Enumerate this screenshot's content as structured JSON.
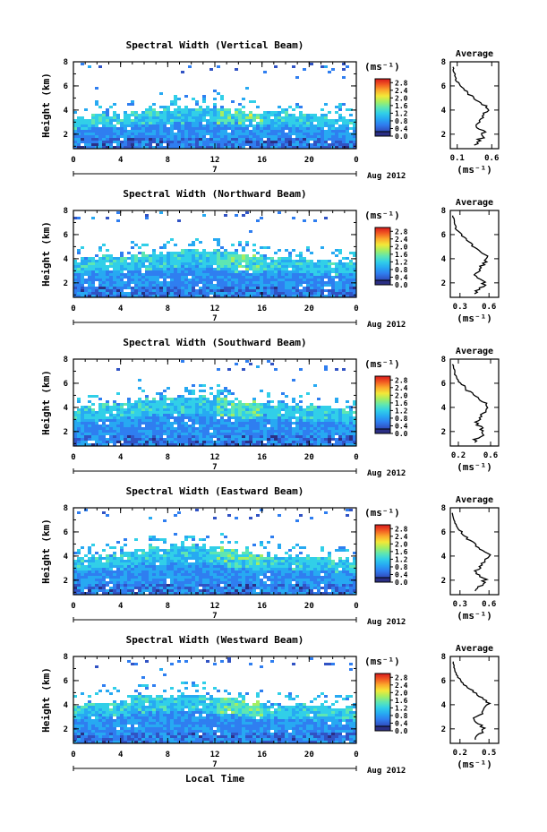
{
  "chart_data": [
    {
      "type": "heatmap",
      "title": "Spectral Width (Vertical Beam)",
      "ylabel": "Height (km)",
      "yticks": [
        "2",
        "4",
        "6",
        "8"
      ],
      "xticks": [
        "0",
        "4",
        "8",
        "12",
        "16",
        "20",
        "0"
      ],
      "date_day": "7",
      "date_label": "Aug 2012",
      "xlim": [
        0,
        24
      ],
      "ylim": [
        0.8,
        8
      ],
      "layer_top_km": [
        3.3,
        3.6,
        3.6,
        3.9,
        4.0,
        4.3,
        4.1,
        4.0,
        3.8,
        3.7,
        3.5,
        3.4,
        3.3
      ],
      "colorbar": {
        "unit": "(ms⁻¹)",
        "ticks": [
          "0.0",
          "0.4",
          "0.8",
          "1.2",
          "1.6",
          "2.0",
          "2.4",
          "2.8"
        ],
        "range": [
          0,
          3.0
        ]
      },
      "profile": {
        "title": "Average",
        "xlabel": "(ms⁻¹)",
        "xticks": [
          "0.1",
          "0.6"
        ],
        "xlim": [
          0.0,
          0.7
        ],
        "yticks": [
          "2",
          "4",
          "6",
          "8"
        ],
        "ylim": [
          0.8,
          8
        ]
      }
    },
    {
      "type": "heatmap",
      "title": "Spectral Width (Northward Beam)",
      "ylabel": "Height (km)",
      "yticks": [
        "2",
        "4",
        "6",
        "8"
      ],
      "xticks": [
        "0",
        "4",
        "8",
        "12",
        "16",
        "20",
        "0"
      ],
      "date_day": "7",
      "date_label": "Aug 2012",
      "xlim": [
        0,
        24
      ],
      "ylim": [
        0.8,
        8
      ],
      "layer_top_km": [
        3.9,
        4.1,
        4.2,
        4.4,
        4.5,
        4.8,
        4.6,
        4.4,
        4.2,
        4.0,
        3.9,
        3.8,
        3.7
      ],
      "colorbar": {
        "unit": "(ms⁻¹)",
        "ticks": [
          "0.0",
          "0.4",
          "0.8",
          "1.2",
          "1.6",
          "2.0",
          "2.4",
          "2.8"
        ],
        "range": [
          0,
          3.0
        ]
      },
      "profile": {
        "title": "Average",
        "xlabel": "(ms⁻¹)",
        "xticks": [
          "0.3",
          "0.6"
        ],
        "xlim": [
          0.2,
          0.7
        ],
        "yticks": [
          "2",
          "4",
          "6",
          "8"
        ],
        "ylim": [
          0.8,
          8
        ]
      }
    },
    {
      "type": "heatmap",
      "title": "Spectral Width (Southward Beam)",
      "ylabel": "Height (km)",
      "yticks": [
        "2",
        "4",
        "6",
        "8"
      ],
      "xticks": [
        "0",
        "4",
        "8",
        "12",
        "16",
        "20",
        "0"
      ],
      "date_day": "7",
      "date_label": "Aug 2012",
      "xlim": [
        0,
        24
      ],
      "ylim": [
        0.8,
        8
      ],
      "layer_top_km": [
        3.9,
        4.1,
        4.3,
        4.7,
        4.8,
        5.0,
        4.7,
        4.5,
        4.3,
        4.1,
        4.0,
        3.9,
        3.8
      ],
      "colorbar": {
        "unit": "(ms⁻¹)",
        "ticks": [
          "0.0",
          "0.4",
          "0.8",
          "1.2",
          "1.6",
          "2.0",
          "2.4",
          "2.8"
        ],
        "range": [
          0,
          3.0
        ]
      },
      "profile": {
        "title": "Average",
        "xlabel": "(ms⁻¹)",
        "xticks": [
          "0.2",
          "0.6"
        ],
        "xlim": [
          0.1,
          0.7
        ],
        "yticks": [
          "2",
          "4",
          "6",
          "8"
        ],
        "ylim": [
          0.8,
          8
        ]
      }
    },
    {
      "type": "heatmap",
      "title": "Spectral Width (Eastward Beam)",
      "ylabel": "Height (km)",
      "yticks": [
        "2",
        "4",
        "6",
        "8"
      ],
      "xticks": [
        "0",
        "4",
        "8",
        "12",
        "16",
        "20",
        "0"
      ],
      "date_day": "7",
      "date_label": "Aug 2012",
      "xlim": [
        0,
        24
      ],
      "ylim": [
        0.8,
        8
      ],
      "layer_top_km": [
        3.8,
        4.0,
        4.2,
        4.6,
        4.8,
        4.9,
        4.7,
        4.4,
        4.2,
        4.0,
        3.9,
        3.8,
        3.7
      ],
      "colorbar": {
        "unit": "(ms⁻¹)",
        "ticks": [
          "0.0",
          "0.4",
          "0.8",
          "1.2",
          "1.6",
          "2.0",
          "2.4",
          "2.8"
        ],
        "range": [
          0,
          3.0
        ]
      },
      "profile": {
        "title": "Average",
        "xlabel": "(ms⁻¹)",
        "xticks": [
          "0.3",
          "0.6"
        ],
        "xlim": [
          0.2,
          0.7
        ],
        "yticks": [
          "2",
          "4",
          "6",
          "8"
        ],
        "ylim": [
          0.8,
          8
        ]
      }
    },
    {
      "type": "heatmap",
      "title": "Spectral Width (Westward Beam)",
      "ylabel": "Height (km)",
      "yticks": [
        "2",
        "4",
        "6",
        "8"
      ],
      "xticks": [
        "0",
        "4",
        "8",
        "12",
        "16",
        "20",
        "0"
      ],
      "date_day": "7",
      "date_label": "Aug 2012",
      "xlabel": "Local Time",
      "xlim": [
        0,
        24
      ],
      "ylim": [
        0.8,
        8
      ],
      "layer_top_km": [
        3.9,
        4.1,
        4.4,
        4.8,
        4.7,
        4.9,
        4.6,
        4.4,
        4.2,
        4.0,
        3.9,
        3.8,
        3.7
      ],
      "colorbar": {
        "unit": "(ms⁻¹)",
        "ticks": [
          "0.0",
          "0.4",
          "0.8",
          "1.2",
          "1.6",
          "2.0",
          "2.4",
          "2.8"
        ],
        "range": [
          0,
          3.0
        ]
      },
      "profile": {
        "title": "Average",
        "xlabel": "(ms⁻¹)",
        "xticks": [
          "0.2",
          "0.5"
        ],
        "xlim": [
          0.1,
          0.6
        ],
        "yticks": [
          "2",
          "4",
          "6",
          "8"
        ],
        "ylim": [
          0.8,
          8
        ]
      }
    }
  ],
  "colormap": [
    "#2b2f85",
    "#3153c4",
    "#2f7ef0",
    "#27a9f2",
    "#31cfe8",
    "#5ee6b2",
    "#a5ee62",
    "#f3e838",
    "#fbaa2c",
    "#f25a22",
    "#d7191c"
  ]
}
